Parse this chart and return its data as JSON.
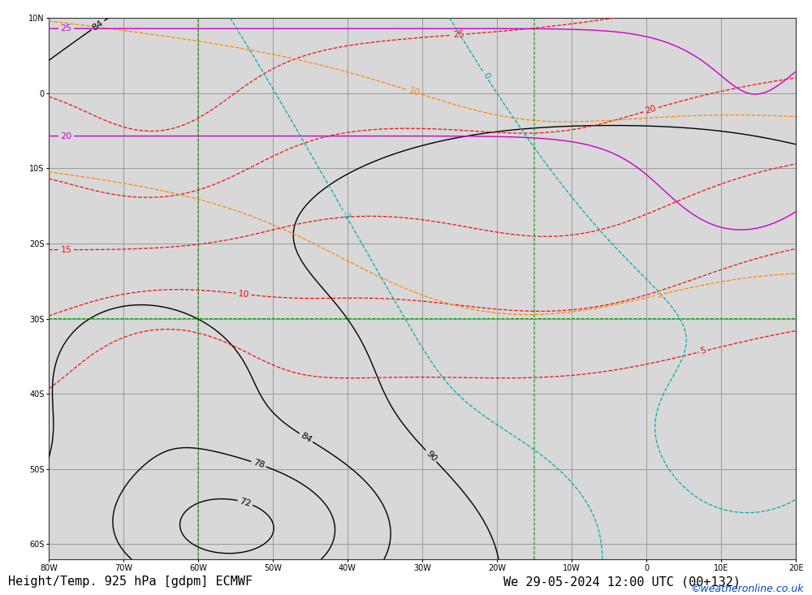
{
  "title_left": "Height/Temp. 925 hPa [gdpm] ECMWF",
  "title_right": "We 29-05-2024 12:00 UTC (00+132)",
  "watermark": "©weatheronline.co.uk",
  "background_ocean": "#d8d8d8",
  "background_land": "#c8e8a0",
  "grid_color": "#999999",
  "font_size_title": 11,
  "font_size_watermark": 9,
  "xlim": [
    -80,
    20
  ],
  "ylim": [
    -62,
    10
  ],
  "xticks": [
    -80,
    -70,
    -60,
    -50,
    -40,
    -30,
    -20,
    -10,
    0,
    10,
    20
  ],
  "yticks": [
    -60,
    -50,
    -40,
    -30,
    -20,
    -10,
    0,
    10
  ],
  "figsize": [
    10.0,
    7.33
  ],
  "dpi": 100
}
